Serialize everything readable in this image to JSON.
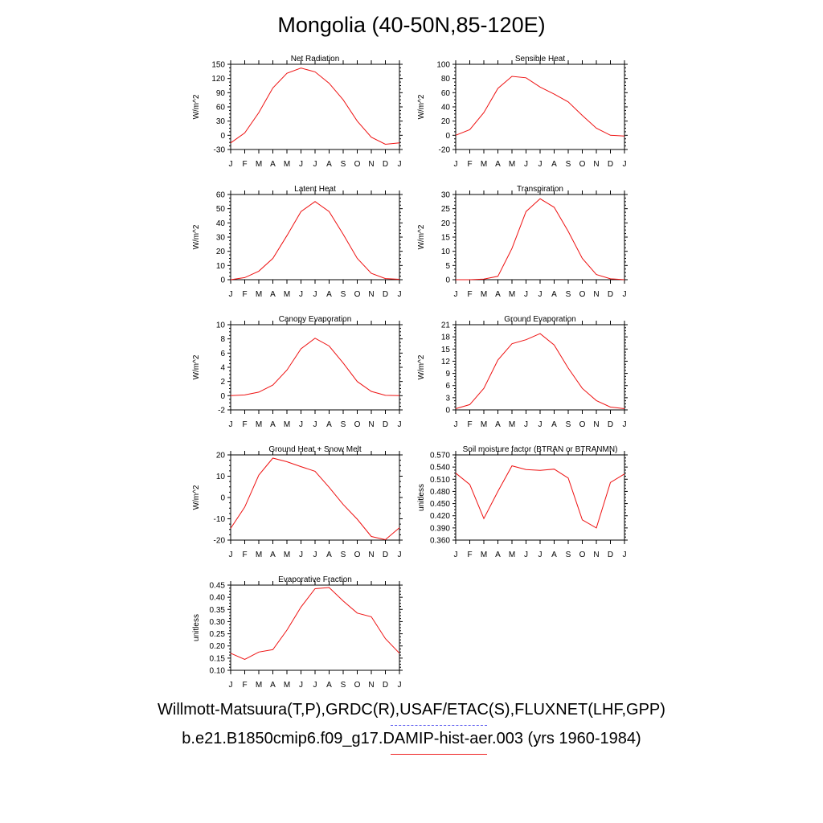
{
  "title": "Mongolia (40-50N,85-120E)",
  "months": [
    "J",
    "F",
    "M",
    "A",
    "M",
    "J",
    "J",
    "A",
    "S",
    "O",
    "N",
    "D",
    "J"
  ],
  "colors": {
    "model_line": "#ee1111",
    "obs_legend": "#5555ee"
  },
  "footer": {
    "obs_label": "Willmott-Matsuura(T,P),GRDC(R),USAF/ETAC(S),FLUXNET(LHF,GPP)",
    "model_label": "b.e21.B1850cmip6.f09_g17.DAMIP-hist-aer.003 (yrs 1960-1984)"
  },
  "chart_data": [
    {
      "type": "line",
      "title": "Net Radiation",
      "ylabel": "W/m^2",
      "ylim": [
        -30,
        150
      ],
      "yticks": [
        "-30",
        "0",
        "30",
        "60",
        "90",
        "120",
        "150"
      ],
      "x": [
        "J",
        "F",
        "M",
        "A",
        "M",
        "J",
        "J",
        "A",
        "S",
        "O",
        "N",
        "D",
        "J"
      ],
      "series": [
        {
          "values": [
            -16,
            5,
            48,
            100,
            131,
            142,
            134,
            110,
            75,
            30,
            -4,
            -19,
            -16
          ]
        }
      ]
    },
    {
      "type": "line",
      "title": "Sensible Heat",
      "ylabel": "W/m^2",
      "ylim": [
        -20,
        100
      ],
      "yticks": [
        "-20",
        "0",
        "20",
        "40",
        "60",
        "80",
        "100"
      ],
      "x": [
        "J",
        "F",
        "M",
        "A",
        "M",
        "J",
        "J",
        "A",
        "S",
        "O",
        "N",
        "D",
        "J"
      ],
      "series": [
        {
          "values": [
            0,
            8,
            32,
            66,
            83,
            81,
            68,
            58,
            47,
            28,
            10,
            0,
            -1
          ]
        }
      ]
    },
    {
      "type": "line",
      "title": "Latent Heat",
      "ylabel": "W/m^2",
      "ylim": [
        0,
        60
      ],
      "yticks": [
        "0",
        "10",
        "20",
        "30",
        "40",
        "50",
        "60"
      ],
      "x": [
        "J",
        "F",
        "M",
        "A",
        "M",
        "J",
        "J",
        "A",
        "S",
        "O",
        "N",
        "D",
        "J"
      ],
      "series": [
        {
          "values": [
            0,
            1.5,
            6,
            15,
            31,
            48,
            55,
            48,
            32,
            15,
            4.5,
            0.8,
            0.3
          ]
        }
      ]
    },
    {
      "type": "line",
      "title": "Transpiration",
      "ylabel": "W/m^2",
      "ylim": [
        0,
        30
      ],
      "yticks": [
        "0",
        "5",
        "10",
        "15",
        "20",
        "25",
        "30"
      ],
      "x": [
        "J",
        "F",
        "M",
        "A",
        "M",
        "J",
        "J",
        "A",
        "S",
        "O",
        "N",
        "D",
        "J"
      ],
      "series": [
        {
          "values": [
            0,
            0,
            0.2,
            1.2,
            11,
            24,
            28.5,
            25.5,
            17,
            7.5,
            1.8,
            0.3,
            0
          ]
        }
      ]
    },
    {
      "type": "line",
      "title": "Canopy Evaporation",
      "ylabel": "W/m^2",
      "ylim": [
        -2,
        10
      ],
      "yticks": [
        "-2",
        "0",
        "2",
        "4",
        "6",
        "8",
        "10"
      ],
      "x": [
        "J",
        "F",
        "M",
        "A",
        "M",
        "J",
        "J",
        "A",
        "S",
        "O",
        "N",
        "D",
        "J"
      ],
      "series": [
        {
          "values": [
            0,
            0.1,
            0.5,
            1.5,
            3.6,
            6.6,
            8.1,
            7.0,
            4.6,
            2.0,
            0.6,
            0.05,
            0
          ]
        }
      ]
    },
    {
      "type": "line",
      "title": "Ground Evaporation",
      "ylabel": "W/m^2",
      "ylim": [
        0,
        21
      ],
      "yticks": [
        "0",
        "3",
        "6",
        "9",
        "12",
        "15",
        "18",
        "21"
      ],
      "x": [
        "J",
        "F",
        "M",
        "A",
        "M",
        "J",
        "J",
        "A",
        "S",
        "O",
        "N",
        "D",
        "J"
      ],
      "series": [
        {
          "values": [
            0.3,
            1.3,
            5.3,
            12.3,
            16.3,
            17.3,
            18.8,
            16.0,
            10.3,
            5.3,
            2.3,
            0.7,
            0.3
          ]
        }
      ]
    },
    {
      "type": "line",
      "title": "Ground Heat + Snow Melt",
      "ylabel": "W/m^2",
      "ylim": [
        -20,
        20
      ],
      "yticks": [
        "-20",
        "-10",
        "0",
        "10",
        "20"
      ],
      "x": [
        "J",
        "F",
        "M",
        "A",
        "M",
        "J",
        "J",
        "A",
        "S",
        "O",
        "N",
        "D",
        "J"
      ],
      "series": [
        {
          "values": [
            -14.5,
            -4.5,
            10.5,
            18.5,
            16.8,
            14.5,
            12.3,
            4.8,
            -3.3,
            -10.2,
            -18.3,
            -19.8,
            -14.2
          ]
        }
      ]
    },
    {
      "type": "line",
      "title": "Soil moisture factor (BTRAN or BTRANMN)",
      "ylabel": "unitless",
      "ylim": [
        0.36,
        0.57
      ],
      "yticks": [
        "0.360",
        "0.390",
        "0.420",
        "0.450",
        "0.480",
        "0.510",
        "0.540",
        "0.570"
      ],
      "x": [
        "J",
        "F",
        "M",
        "A",
        "M",
        "J",
        "J",
        "A",
        "S",
        "O",
        "N",
        "D",
        "J"
      ],
      "series": [
        {
          "values": [
            0.525,
            0.497,
            0.413,
            0.48,
            0.543,
            0.534,
            0.532,
            0.535,
            0.513,
            0.41,
            0.39,
            0.502,
            0.523
          ]
        }
      ]
    },
    {
      "type": "line",
      "title": "Evaporative Fraction",
      "ylabel": "unitless",
      "ylim": [
        0.1,
        0.45
      ],
      "yticks": [
        "0.10",
        "0.15",
        "0.20",
        "0.25",
        "0.30",
        "0.35",
        "0.40",
        "0.45"
      ],
      "x": [
        "J",
        "F",
        "M",
        "A",
        "M",
        "J",
        "J",
        "A",
        "S",
        "O",
        "N",
        "D",
        "J"
      ],
      "series": [
        {
          "values": [
            0.17,
            0.145,
            0.175,
            0.185,
            0.265,
            0.36,
            0.435,
            0.44,
            0.385,
            0.335,
            0.32,
            0.23,
            0.17
          ]
        }
      ]
    }
  ]
}
